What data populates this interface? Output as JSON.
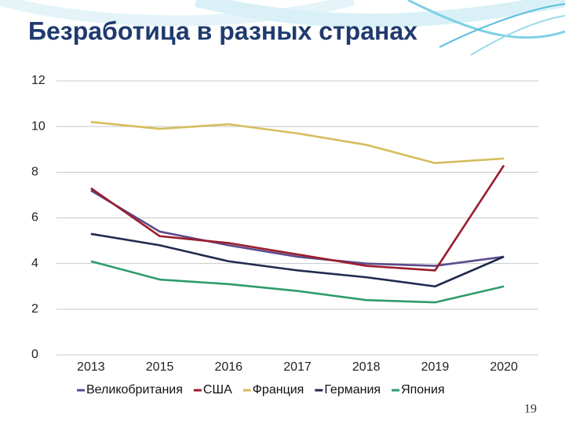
{
  "chart_data": {
    "type": "line",
    "title": "Безработица в разных странах",
    "categories": [
      "2013",
      "2015",
      "2016",
      "2017",
      "2018",
      "2019",
      "2020"
    ],
    "series": [
      {
        "name": "Великобритания",
        "color": "#5b4b8a",
        "values": [
          7.2,
          5.4,
          4.8,
          4.3,
          4.0,
          3.9,
          4.3
        ]
      },
      {
        "name": "США",
        "color": "#9b1c2c",
        "values": [
          7.3,
          5.2,
          4.9,
          4.4,
          3.9,
          3.7,
          8.3
        ]
      },
      {
        "name": "Франция",
        "color": "#d6bd5e",
        "values": [
          10.2,
          9.9,
          10.1,
          9.7,
          9.2,
          8.4,
          8.6
        ]
      },
      {
        "name": "Германия",
        "color": "#1f2a4e",
        "values": [
          5.3,
          4.8,
          4.1,
          3.7,
          3.4,
          3.0,
          4.3
        ]
      },
      {
        "name": "Япония",
        "color": "#2e9b6b",
        "values": [
          4.1,
          3.3,
          3.1,
          2.8,
          2.4,
          2.3,
          3.0
        ]
      }
    ],
    "ylim": [
      0,
      12
    ],
    "yticks": [
      0,
      2,
      4,
      6,
      8,
      10,
      12
    ],
    "grid": true,
    "legend": "bottom"
  },
  "page_number": "19"
}
